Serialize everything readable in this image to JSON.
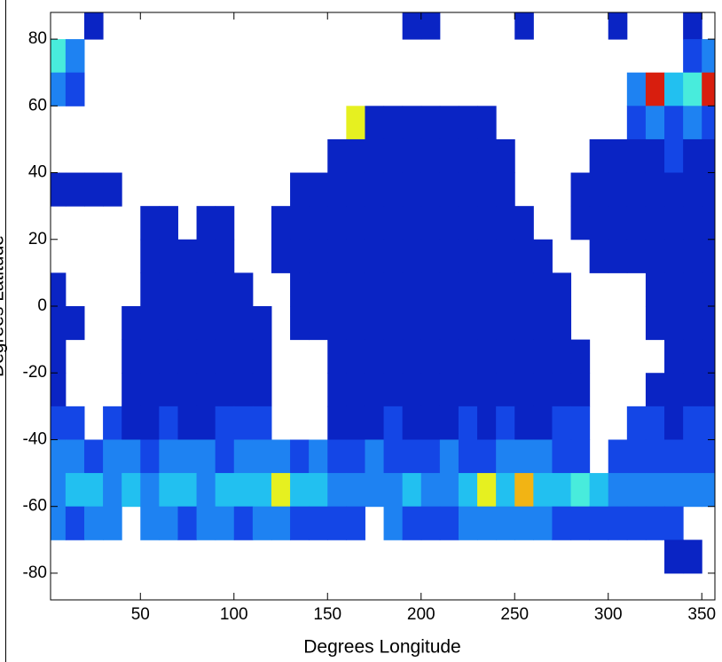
{
  "chart_data": {
    "type": "heatmap",
    "x_label": "Degrees Longitude",
    "y_label": "Degrees Latitude",
    "xlim": [
      2,
      357
    ],
    "ylim": [
      -88,
      88
    ],
    "xticks": [
      50,
      100,
      150,
      200,
      250,
      300,
      350
    ],
    "yticks": [
      -80,
      -60,
      -40,
      -20,
      0,
      20,
      40,
      60,
      80
    ],
    "colormap": [
      "#0a24c4",
      "#1446e6",
      "#1e82f2",
      "#22c0f0",
      "#48ecdc",
      "#e6f020",
      "#f2b414",
      "#d81e0e"
    ],
    "x": [
      5,
      15,
      25,
      35,
      45,
      55,
      65,
      75,
      85,
      95,
      105,
      115,
      125,
      135,
      145,
      155,
      165,
      175,
      185,
      195,
      205,
      215,
      225,
      235,
      245,
      255,
      265,
      275,
      285,
      295,
      305,
      315,
      325,
      335,
      345,
      355
    ],
    "y": [
      85,
      75,
      65,
      55,
      45,
      35,
      25,
      15,
      5,
      -5,
      -15,
      -25,
      -35,
      -45,
      -55,
      -65,
      -75,
      -85
    ],
    "z": [
      [
        null,
        null,
        1,
        null,
        null,
        null,
        null,
        null,
        null,
        null,
        null,
        null,
        null,
        null,
        null,
        null,
        null,
        null,
        null,
        1,
        1,
        null,
        null,
        null,
        null,
        1,
        null,
        null,
        null,
        null,
        1,
        null,
        null,
        null,
        1,
        null
      ],
      [
        5,
        3,
        null,
        null,
        null,
        null,
        null,
        null,
        null,
        null,
        null,
        null,
        null,
        null,
        null,
        null,
        null,
        null,
        null,
        null,
        null,
        null,
        null,
        null,
        null,
        null,
        null,
        null,
        null,
        null,
        null,
        null,
        null,
        null,
        2,
        3
      ],
      [
        3,
        2,
        null,
        null,
        null,
        null,
        null,
        null,
        null,
        null,
        null,
        null,
        null,
        null,
        null,
        null,
        null,
        null,
        null,
        null,
        null,
        null,
        null,
        null,
        null,
        null,
        null,
        null,
        null,
        null,
        null,
        3,
        8,
        4,
        5,
        8
      ],
      [
        null,
        null,
        null,
        null,
        null,
        null,
        null,
        null,
        null,
        null,
        null,
        null,
        null,
        null,
        null,
        null,
        6,
        1,
        1,
        1,
        1,
        1,
        1,
        1,
        null,
        null,
        null,
        null,
        null,
        null,
        null,
        2,
        3,
        2,
        3,
        2
      ],
      [
        null,
        null,
        null,
        null,
        null,
        null,
        null,
        null,
        null,
        null,
        null,
        null,
        null,
        null,
        null,
        1,
        1,
        1,
        1,
        1,
        1,
        1,
        1,
        1,
        1,
        null,
        null,
        null,
        null,
        1,
        1,
        1,
        1,
        2,
        1,
        1
      ],
      [
        1,
        1,
        1,
        1,
        null,
        null,
        null,
        null,
        null,
        null,
        null,
        null,
        null,
        1,
        1,
        1,
        1,
        1,
        1,
        1,
        1,
        1,
        1,
        1,
        1,
        null,
        null,
        null,
        1,
        1,
        1,
        1,
        1,
        1,
        1,
        1
      ],
      [
        null,
        null,
        null,
        null,
        null,
        1,
        1,
        null,
        1,
        1,
        null,
        null,
        1,
        1,
        1,
        1,
        1,
        1,
        1,
        1,
        1,
        1,
        1,
        1,
        1,
        1,
        null,
        null,
        1,
        1,
        1,
        1,
        1,
        1,
        1,
        1
      ],
      [
        null,
        null,
        null,
        null,
        null,
        1,
        1,
        1,
        1,
        1,
        null,
        null,
        1,
        1,
        1,
        1,
        1,
        1,
        1,
        1,
        1,
        1,
        1,
        1,
        1,
        1,
        1,
        null,
        null,
        1,
        1,
        1,
        1,
        1,
        1,
        1
      ],
      [
        1,
        null,
        null,
        null,
        null,
        1,
        1,
        1,
        1,
        1,
        1,
        null,
        null,
        1,
        1,
        1,
        1,
        1,
        1,
        1,
        1,
        1,
        1,
        1,
        1,
        1,
        1,
        1,
        null,
        null,
        null,
        null,
        1,
        1,
        1,
        1
      ],
      [
        1,
        1,
        null,
        null,
        1,
        1,
        1,
        1,
        1,
        1,
        1,
        1,
        null,
        1,
        1,
        1,
        1,
        1,
        1,
        1,
        1,
        1,
        1,
        1,
        1,
        1,
        1,
        1,
        null,
        null,
        null,
        null,
        1,
        1,
        1,
        1
      ],
      [
        1,
        null,
        null,
        null,
        1,
        1,
        1,
        1,
        1,
        1,
        1,
        1,
        null,
        null,
        null,
        1,
        1,
        1,
        1,
        1,
        1,
        1,
        1,
        1,
        1,
        1,
        1,
        1,
        1,
        null,
        null,
        null,
        null,
        1,
        1,
        1
      ],
      [
        1,
        null,
        null,
        null,
        1,
        1,
        1,
        1,
        1,
        1,
        1,
        1,
        null,
        null,
        null,
        1,
        1,
        1,
        1,
        1,
        1,
        1,
        1,
        1,
        1,
        1,
        1,
        1,
        1,
        null,
        null,
        null,
        1,
        1,
        1,
        1
      ],
      [
        2,
        2,
        null,
        2,
        1,
        1,
        2,
        1,
        1,
        2,
        2,
        2,
        null,
        null,
        null,
        1,
        1,
        1,
        2,
        1,
        1,
        1,
        2,
        1,
        2,
        1,
        1,
        2,
        2,
        null,
        null,
        2,
        2,
        1,
        2,
        2
      ],
      [
        3,
        3,
        2,
        3,
        3,
        2,
        3,
        3,
        3,
        2,
        3,
        3,
        3,
        2,
        3,
        2,
        2,
        3,
        2,
        2,
        2,
        3,
        2,
        2,
        3,
        3,
        3,
        2,
        2,
        null,
        2,
        2,
        2,
        2,
        2,
        2
      ],
      [
        3,
        4,
        4,
        3,
        4,
        3,
        4,
        4,
        3,
        4,
        4,
        4,
        6,
        4,
        4,
        3,
        3,
        3,
        3,
        4,
        3,
        3,
        4,
        6,
        4,
        7,
        4,
        4,
        5,
        4,
        3,
        3,
        3,
        3,
        3,
        3
      ],
      [
        3,
        2,
        3,
        3,
        null,
        3,
        3,
        2,
        3,
        3,
        2,
        3,
        3,
        2,
        2,
        2,
        2,
        null,
        3,
        2,
        2,
        2,
        3,
        3,
        3,
        3,
        3,
        2,
        2,
        2,
        2,
        2,
        2,
        2,
        null,
        null
      ],
      [
        null,
        null,
        null,
        null,
        null,
        null,
        null,
        null,
        null,
        null,
        null,
        null,
        null,
        null,
        null,
        null,
        null,
        null,
        null,
        null,
        null,
        null,
        null,
        null,
        null,
        null,
        null,
        null,
        null,
        null,
        null,
        null,
        null,
        1,
        1,
        null
      ],
      [
        null,
        null,
        null,
        null,
        null,
        null,
        null,
        null,
        null,
        null,
        null,
        null,
        null,
        null,
        null,
        null,
        null,
        null,
        null,
        null,
        null,
        null,
        null,
        null,
        null,
        null,
        null,
        null,
        null,
        null,
        null,
        null,
        null,
        null,
        null,
        null
      ]
    ]
  }
}
